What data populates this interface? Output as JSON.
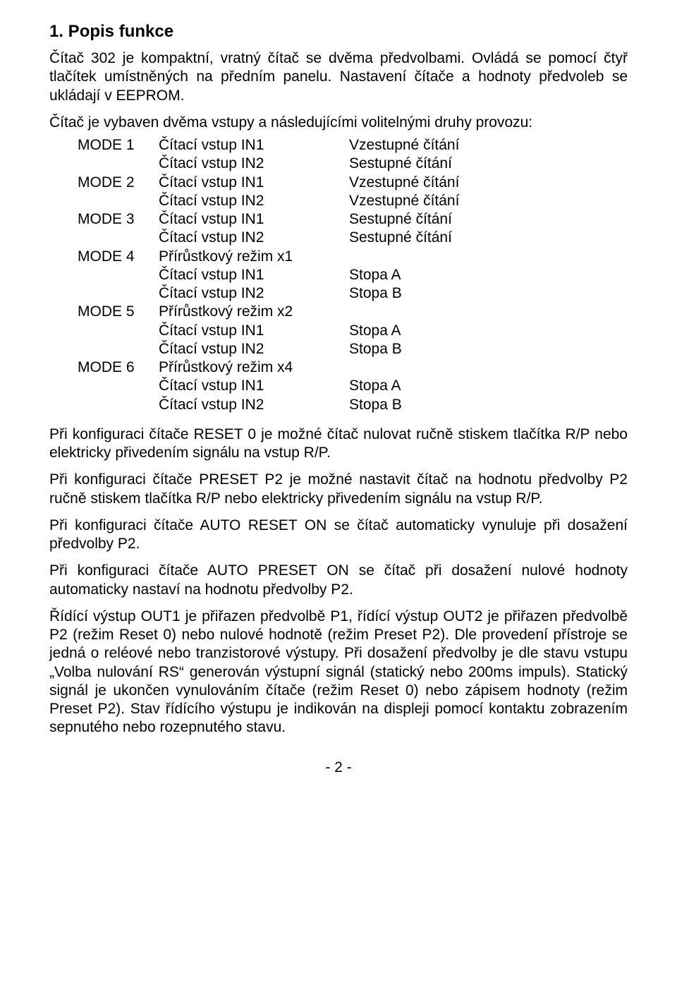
{
  "heading": "1. Popis funkce",
  "intro1": "Čítač 302 je kompaktní, vratný čítač se dvěma předvolbami. Ovládá se pomocí čtyř tlačítek umístněných na předním panelu. Nastavení čítače a hodnoty předvoleb se ukládají v EEPROM.",
  "intro2": "Čítač je vybaven dvěma vstupy a následujícími volitelnými druhy provozu:",
  "modes": [
    {
      "label": "MODE 1",
      "lines": [
        {
          "c2": "Čítací vstup IN1",
          "c3": "Vzestupné čítání"
        },
        {
          "c2": "Čítací vstup IN2",
          "c3": "Sestupné čítání"
        }
      ]
    },
    {
      "label": "MODE 2",
      "lines": [
        {
          "c2": "Čítací vstup IN1",
          "c3": "Vzestupné čítání"
        },
        {
          "c2": "Čítací vstup IN2",
          "c3": "Vzestupné čítání"
        }
      ]
    },
    {
      "label": "MODE 3",
      "lines": [
        {
          "c2": "Čítací vstup IN1",
          "c3": "Sestupné čítání"
        },
        {
          "c2": "Čítací vstup IN2",
          "c3": "Sestupné čítání"
        }
      ]
    },
    {
      "label": "MODE 4",
      "lines": [
        {
          "c2": "Přírůstkový režim x1",
          "c3": ""
        },
        {
          "c2": "Čítací vstup IN1",
          "c3": "Stopa A"
        },
        {
          "c2": "Čítací vstup IN2",
          "c3": "Stopa B"
        }
      ]
    },
    {
      "label": "MODE 5",
      "lines": [
        {
          "c2": "Přírůstkový režim x2",
          "c3": ""
        },
        {
          "c2": "Čítací vstup IN1",
          "c3": "Stopa A"
        },
        {
          "c2": "Čítací vstup IN2",
          "c3": "Stopa B"
        }
      ]
    },
    {
      "label": "MODE 6",
      "lines": [
        {
          "c2": "Přírůstkový režim x4",
          "c3": ""
        },
        {
          "c2": "Čítací vstup IN1",
          "c3": "Stopa A"
        },
        {
          "c2": "Čítací vstup IN2",
          "c3": "Stopa B"
        }
      ]
    }
  ],
  "p1": "Při konfiguraci čítače RESET 0 je možné čítač nulovat ručně stiskem tlačítka R/P nebo elektricky přivedením signálu na vstup R/P.",
  "p2": "Při konfiguraci čítače PRESET P2 je možné nastavit čítač na hodnotu předvolby P2 ručně stiskem tlačítka R/P nebo elektricky přivedením signálu na vstup R/P.",
  "p3": "Při konfiguraci čítače AUTO RESET ON se čítač automaticky vynuluje při dosažení předvolby P2.",
  "p4": "Při konfiguraci čítače AUTO PRESET ON se čítač při dosažení nulové hodnoty automaticky nastaví na hodnotu předvolby P2.",
  "p5": "Řídící výstup OUT1 je přiřazen předvolbě P1, řídící výstup OUT2 je přiřazen předvolbě P2 (režim Reset 0) nebo nulové hodnotě (režim Preset P2). Dle provedení přístroje se jedná o reléové nebo tranzistorové výstupy. Při dosažení předvolby je dle stavu vstupu „Volba nulování RS“ generován výstupní signál (statický nebo 200ms impuls). Statický signál je ukončen vynulováním čítače (režim Reset 0) nebo zápisem hodnoty (režim Preset P2). Stav řídícího výstupu je indikován na displeji pomocí kontaktu zobrazením sepnutého nebo rozepnutého stavu.",
  "pageNum": "- 2 -"
}
